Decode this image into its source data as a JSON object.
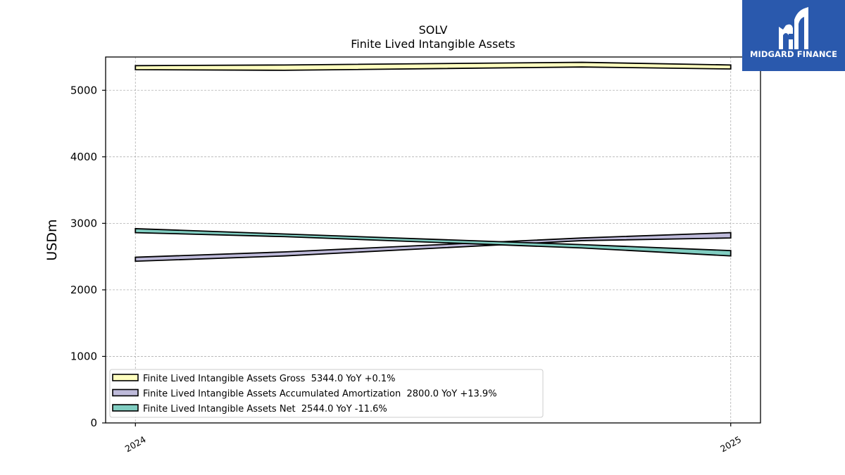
{
  "chart_data": {
    "type": "area",
    "title": "SOLV",
    "subtitle": "Finite Lived Intangible Assets",
    "ylabel": "USDm",
    "xlabel": "",
    "ylim": [
      0,
      5500
    ],
    "yticks": [
      0,
      1000,
      2000,
      3000,
      4000,
      5000
    ],
    "x": [
      2024.0,
      2024.25,
      2024.75,
      2025.0
    ],
    "xticks": [
      {
        "value": 2024,
        "label": "2024"
      },
      {
        "value": 2025,
        "label": "2025"
      }
    ],
    "grid": true,
    "legend_position": "lower-left",
    "series": [
      {
        "name": "Finite Lived Intangible Assets Gross",
        "legend_label": "Finite Lived Intangible Assets Gross  5344.0 YoY +0.1%",
        "color": "#ffffbf",
        "lower": [
          5310,
          5300,
          5350,
          5320
        ],
        "upper": [
          5370,
          5380,
          5420,
          5380
        ]
      },
      {
        "name": "Finite Lived Intangible Assets Accumulated Amortization",
        "legend_label": "Finite Lived Intangible Assets Accumulated Amortization  2800.0 YoY +13.9%",
        "color": "#bebada",
        "lower": [
          2430,
          2510,
          2740,
          2780
        ],
        "upper": [
          2490,
          2570,
          2780,
          2860
        ]
      },
      {
        "name": "Finite Lived Intangible Assets Net",
        "legend_label": "Finite Lived Intangible Assets Net  2544.0 YoY -11.6%",
        "color": "#80cdc1",
        "lower": [
          2860,
          2800,
          2630,
          2510
        ],
        "upper": [
          2920,
          2840,
          2680,
          2590
        ]
      }
    ]
  },
  "logo": {
    "text": "MIDGARD FINANCE",
    "color": "#2a59ad"
  }
}
